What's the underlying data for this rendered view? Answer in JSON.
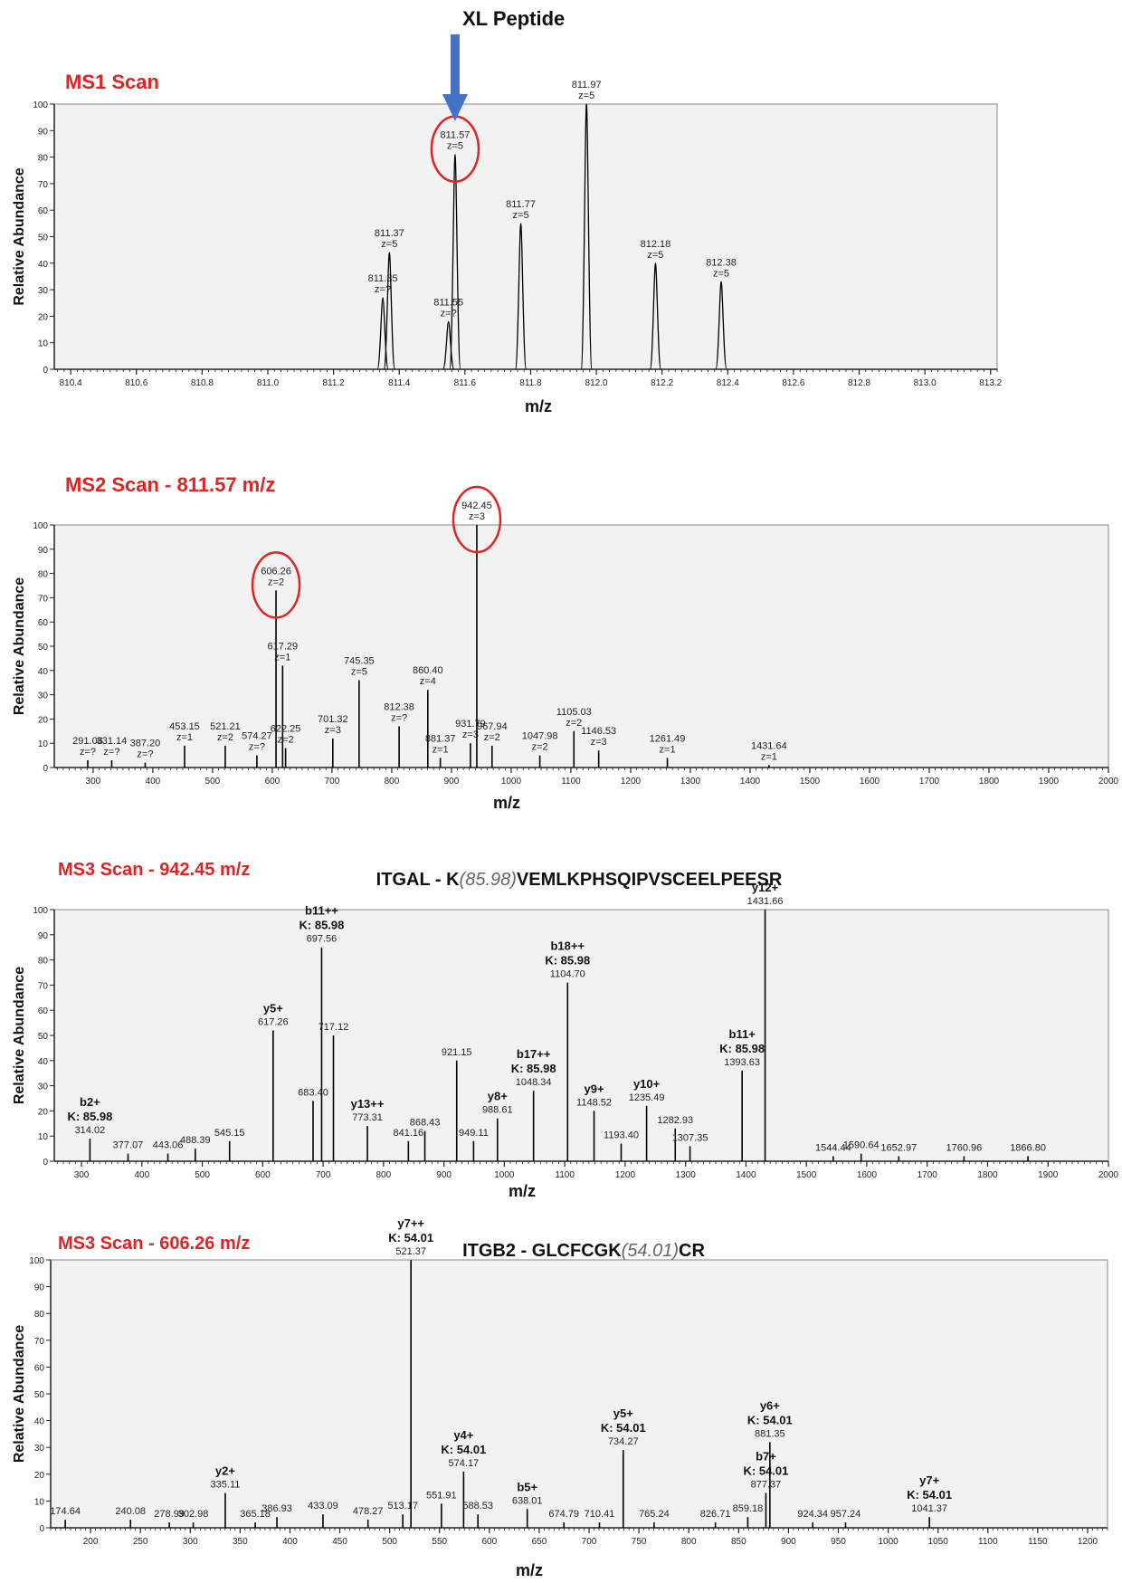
{
  "header": {
    "xl_label": "XL Peptide"
  },
  "colors": {
    "red": "#e02424",
    "arrow": "#4472c4",
    "panel_bg": "#f2f2f2",
    "axis": "#222222",
    "peak": "#000000",
    "callout": "#2ca02c"
  },
  "chart_data": [
    {
      "type": "line",
      "title": "MS1 Scan",
      "xlabel": "m/z",
      "ylabel": "Relative Abundance",
      "xlim": [
        810.35,
        813.22
      ],
      "ylim": [
        0,
        100
      ],
      "xticks": [
        810.4,
        810.6,
        810.8,
        811.0,
        811.2,
        811.4,
        811.6,
        811.8,
        812.0,
        812.2,
        812.4,
        812.6,
        812.8,
        813.0,
        813.2
      ],
      "xtick_labels": [
        "810.4",
        "810.6",
        "810.8",
        "811.0",
        "811.2",
        "811.4",
        "811.6",
        "811.8",
        "812.0",
        "812.2",
        "812.4",
        "812.6",
        "812.8",
        "813.0",
        "813.2"
      ],
      "yticks": [
        0,
        10,
        20,
        30,
        40,
        50,
        60,
        70,
        80,
        90,
        100
      ],
      "ytick_labels": [
        "0",
        "10",
        "20",
        "30",
        "40",
        "50",
        "60",
        "70",
        "80",
        "90",
        "100"
      ],
      "peaks": [
        {
          "x": 811.35,
          "y": 27,
          "labels": [
            "811.35",
            "z=?"
          ]
        },
        {
          "x": 811.37,
          "y": 44,
          "labels": [
            "811.37",
            "z=5"
          ]
        },
        {
          "x": 811.55,
          "y": 18,
          "labels": [
            "811.55",
            "z=?"
          ]
        },
        {
          "x": 811.57,
          "y": 81,
          "labels": [
            "811.57",
            "z=5"
          ],
          "circled": true
        },
        {
          "x": 811.77,
          "y": 55,
          "labels": [
            "811.77",
            "z=5"
          ]
        },
        {
          "x": 811.97,
          "y": 100,
          "labels": [
            "811.97",
            "z=5"
          ]
        },
        {
          "x": 812.18,
          "y": 40,
          "labels": [
            "812.18",
            "z=5"
          ]
        },
        {
          "x": 812.38,
          "y": 33,
          "labels": [
            "812.38",
            "z=5"
          ]
        }
      ]
    },
    {
      "type": "bar",
      "title": "MS2 Scan - 811.57 m/z",
      "xlabel": "m/z",
      "ylabel": "Relative Abundance",
      "xlim": [
        235,
        2000
      ],
      "ylim": [
        0,
        100
      ],
      "xticks": [
        300,
        400,
        500,
        600,
        700,
        800,
        900,
        1000,
        1100,
        1200,
        1300,
        1400,
        1500,
        1600,
        1700,
        1800,
        1900,
        2000
      ],
      "xtick_labels": [
        "300",
        "400",
        "500",
        "600",
        "700",
        "800",
        "900",
        "1000",
        "1100",
        "1200",
        "1300",
        "1400",
        "1500",
        "1600",
        "1700",
        "1800",
        "1900",
        "2000"
      ],
      "yticks": [
        0,
        10,
        20,
        30,
        40,
        50,
        60,
        70,
        80,
        90,
        100
      ],
      "ytick_labels": [
        "0",
        "10",
        "20",
        "30",
        "40",
        "50",
        "60",
        "70",
        "80",
        "90",
        "100"
      ],
      "peaks": [
        {
          "x": 291.06,
          "y": 3,
          "labels": [
            "291.06",
            "z=?"
          ]
        },
        {
          "x": 331.14,
          "y": 3,
          "labels": [
            "331.14",
            "z=?"
          ]
        },
        {
          "x": 387.2,
          "y": 2,
          "labels": [
            "387.20",
            "z=?"
          ]
        },
        {
          "x": 453.15,
          "y": 9,
          "labels": [
            "453.15",
            "z=1"
          ]
        },
        {
          "x": 521.21,
          "y": 9,
          "labels": [
            "521.21",
            "z=2"
          ]
        },
        {
          "x": 574.27,
          "y": 5,
          "labels": [
            "574.27",
            "z=?"
          ]
        },
        {
          "x": 606.26,
          "y": 73,
          "labels": [
            "606.26",
            "z=2"
          ],
          "circled": true
        },
        {
          "x": 617.29,
          "y": 42,
          "labels": [
            "617.29",
            "z=1"
          ]
        },
        {
          "x": 622.25,
          "y": 8,
          "labels": [
            "622.25",
            "z=2"
          ]
        },
        {
          "x": 701.32,
          "y": 12,
          "labels": [
            "701.32",
            "z=3"
          ]
        },
        {
          "x": 745.35,
          "y": 36,
          "labels": [
            "745.35",
            "z=5"
          ]
        },
        {
          "x": 812.38,
          "y": 17,
          "labels": [
            "812.38",
            "z=?"
          ]
        },
        {
          "x": 860.4,
          "y": 32,
          "labels": [
            "860.40",
            "z=4"
          ]
        },
        {
          "x": 881.37,
          "y": 4,
          "labels": [
            "881.37",
            "z=1"
          ]
        },
        {
          "x": 931.79,
          "y": 10,
          "labels": [
            "931.79",
            "z=3"
          ]
        },
        {
          "x": 942.45,
          "y": 100,
          "labels": [
            "942.45",
            "z=3"
          ],
          "circled": true
        },
        {
          "x": 967.94,
          "y": 9,
          "labels": [
            "967.94",
            "z=2"
          ]
        },
        {
          "x": 1047.98,
          "y": 5,
          "labels": [
            "1047.98",
            "z=2"
          ]
        },
        {
          "x": 1105.03,
          "y": 15,
          "labels": [
            "1105.03",
            "z=2"
          ]
        },
        {
          "x": 1146.53,
          "y": 7,
          "labels": [
            "1146.53",
            "z=3"
          ]
        },
        {
          "x": 1261.49,
          "y": 4,
          "labels": [
            "1261.49",
            "z=1"
          ]
        },
        {
          "x": 1431.64,
          "y": 1,
          "labels": [
            "1431.64",
            "z=1"
          ]
        }
      ]
    },
    {
      "type": "bar",
      "title": "MS3 Scan - 942.45 m/z",
      "peptide": {
        "pre": "ITGAL - K",
        "mod": "(85.98)",
        "post": "VEMLKPHSQIPVSCEELPEESR"
      },
      "xlabel": "m/z",
      "ylabel": "Relative Abundance",
      "xlim": [
        255,
        2000
      ],
      "ylim": [
        0,
        100
      ],
      "xticks": [
        300,
        400,
        500,
        600,
        700,
        800,
        900,
        1000,
        1100,
        1200,
        1300,
        1400,
        1500,
        1600,
        1700,
        1800,
        1900,
        2000
      ],
      "xtick_labels": [
        "300",
        "400",
        "500",
        "600",
        "700",
        "800",
        "900",
        "1000",
        "1100",
        "1200",
        "1300",
        "1400",
        "1500",
        "1600",
        "1700",
        "1800",
        "1900",
        "2000"
      ],
      "yticks": [
        0,
        10,
        20,
        30,
        40,
        50,
        60,
        70,
        80,
        90,
        100
      ],
      "ytick_labels": [
        "0",
        "10",
        "20",
        "30",
        "40",
        "50",
        "60",
        "70",
        "80",
        "90",
        "100"
      ],
      "peaks": [
        {
          "x": 314.02,
          "y": 9,
          "labels": [
            "314.02"
          ],
          "ion": [
            "b2+",
            "K: 85.98"
          ]
        },
        {
          "x": 377.07,
          "y": 3,
          "labels": [
            "377.07"
          ]
        },
        {
          "x": 443.06,
          "y": 3,
          "labels": [
            "443.06"
          ]
        },
        {
          "x": 488.39,
          "y": 5,
          "labels": [
            "488.39"
          ]
        },
        {
          "x": 545.15,
          "y": 8,
          "labels": [
            "545.15"
          ]
        },
        {
          "x": 617.26,
          "y": 52,
          "labels": [
            "617.26"
          ],
          "ion": [
            "y5+"
          ]
        },
        {
          "x": 683.4,
          "y": 24,
          "labels": [
            "683.40"
          ]
        },
        {
          "x": 697.56,
          "y": 85,
          "labels": [
            "697.56"
          ],
          "ion": [
            "b11++",
            "K: 85.98"
          ]
        },
        {
          "x": 717.12,
          "y": 50,
          "labels": [
            "717.12"
          ]
        },
        {
          "x": 773.31,
          "y": 14,
          "labels": [
            "773.31"
          ],
          "ion": [
            "y13++"
          ]
        },
        {
          "x": 841.16,
          "y": 8,
          "labels": [
            "841.16"
          ]
        },
        {
          "x": 868.43,
          "y": 12,
          "labels": [
            "868.43"
          ]
        },
        {
          "x": 921.15,
          "y": 40,
          "labels": [
            "921.15"
          ]
        },
        {
          "x": 949.11,
          "y": 8,
          "labels": [
            "949.11"
          ]
        },
        {
          "x": 988.61,
          "y": 17,
          "labels": [
            "988.61"
          ],
          "ion": [
            "y8+"
          ]
        },
        {
          "x": 1048.34,
          "y": 28,
          "labels": [
            "1048.34"
          ],
          "ion": [
            "b17++",
            "K: 85.98"
          ]
        },
        {
          "x": 1104.7,
          "y": 71,
          "labels": [
            "1104.70"
          ],
          "ion": [
            "b18++",
            "K: 85.98"
          ]
        },
        {
          "x": 1148.52,
          "y": 20,
          "labels": [
            "1148.52"
          ],
          "ion": [
            "y9+"
          ]
        },
        {
          "x": 1193.4,
          "y": 7,
          "labels": [
            "1193.40"
          ]
        },
        {
          "x": 1235.49,
          "y": 22,
          "labels": [
            "1235.49"
          ],
          "ion": [
            "y10+"
          ]
        },
        {
          "x": 1282.93,
          "y": 13,
          "labels": [
            "1282.93"
          ]
        },
        {
          "x": 1307.35,
          "y": 6,
          "labels": [
            "1307.35"
          ]
        },
        {
          "x": 1393.63,
          "y": 36,
          "labels": [
            "1393.63"
          ],
          "ion": [
            "b11+",
            "K: 85.98"
          ]
        },
        {
          "x": 1431.66,
          "y": 100,
          "labels": [
            "1431.66"
          ],
          "ion": [
            "y12+"
          ]
        },
        {
          "x": 1544.44,
          "y": 2,
          "labels": [
            "1544.44"
          ]
        },
        {
          "x": 1590.64,
          "y": 3,
          "labels": [
            "1590.64"
          ]
        },
        {
          "x": 1652.97,
          "y": 2,
          "labels": [
            "1652.97"
          ]
        },
        {
          "x": 1760.96,
          "y": 2,
          "labels": [
            "1760.96"
          ]
        },
        {
          "x": 1866.8,
          "y": 2,
          "labels": [
            "1866.80"
          ]
        }
      ]
    },
    {
      "type": "bar",
      "title": "MS3 Scan - 606.26 m/z",
      "peptide": {
        "pre": "ITGB2 - GLCFCGK",
        "mod": "(54.01)",
        "post": "CR"
      },
      "xlabel": "m/z",
      "ylabel": "Relative Abundance",
      "xlim": [
        160,
        1220
      ],
      "ylim": [
        0,
        100
      ],
      "xticks": [
        200,
        250,
        300,
        350,
        400,
        450,
        500,
        550,
        600,
        650,
        700,
        750,
        800,
        850,
        900,
        950,
        1000,
        1050,
        1100,
        1150,
        1200
      ],
      "xtick_labels": [
        "200",
        "250",
        "300",
        "350",
        "400",
        "450",
        "500",
        "550",
        "600",
        "650",
        "700",
        "750",
        "800",
        "850",
        "900",
        "950",
        "1000",
        "1050",
        "1100",
        "1150",
        "1200"
      ],
      "yticks": [
        0,
        10,
        20,
        30,
        40,
        50,
        60,
        70,
        80,
        90,
        100
      ],
      "ytick_labels": [
        "0",
        "10",
        "20",
        "30",
        "40",
        "50",
        "60",
        "70",
        "80",
        "90",
        "100"
      ],
      "peaks": [
        {
          "x": 174.64,
          "y": 3,
          "labels": [
            "174.64"
          ]
        },
        {
          "x": 240.08,
          "y": 3,
          "labels": [
            "240.08"
          ]
        },
        {
          "x": 278.99,
          "y": 2,
          "labels": [
            "278.99"
          ]
        },
        {
          "x": 302.98,
          "y": 2,
          "labels": [
            "302.98"
          ]
        },
        {
          "x": 335.11,
          "y": 13,
          "labels": [
            "335.11"
          ],
          "ion": [
            "y2+"
          ]
        },
        {
          "x": 365.18,
          "y": 2,
          "labels": [
            "365.18"
          ]
        },
        {
          "x": 386.93,
          "y": 4,
          "labels": [
            "386.93"
          ]
        },
        {
          "x": 433.09,
          "y": 5,
          "labels": [
            "433.09"
          ]
        },
        {
          "x": 478.27,
          "y": 3,
          "labels": [
            "478.27"
          ]
        },
        {
          "x": 513.17,
          "y": 5,
          "labels": [
            "513.17"
          ]
        },
        {
          "x": 521.37,
          "y": 100,
          "labels": [
            "521.37"
          ],
          "ion": [
            "y7++",
            "K: 54.01"
          ]
        },
        {
          "x": 551.91,
          "y": 9,
          "labels": [
            "551.91"
          ]
        },
        {
          "x": 574.17,
          "y": 21,
          "labels": [
            "574.17"
          ],
          "ion": [
            "y4+",
            "K: 54.01"
          ]
        },
        {
          "x": 588.53,
          "y": 5,
          "labels": [
            "588.53"
          ]
        },
        {
          "x": 638.01,
          "y": 7,
          "labels": [
            "638.01"
          ],
          "ion": [
            "b5+"
          ]
        },
        {
          "x": 674.79,
          "y": 2,
          "labels": [
            "674.79"
          ]
        },
        {
          "x": 710.41,
          "y": 2,
          "labels": [
            "710.41"
          ]
        },
        {
          "x": 734.27,
          "y": 29,
          "labels": [
            "734.27"
          ],
          "ion": [
            "y5+",
            "K: 54.01"
          ]
        },
        {
          "x": 765.24,
          "y": 2,
          "labels": [
            "765.24"
          ]
        },
        {
          "x": 826.71,
          "y": 2,
          "labels": [
            "826.71"
          ]
        },
        {
          "x": 859.18,
          "y": 4,
          "labels": [
            "859.18"
          ]
        },
        {
          "x": 877.37,
          "y": 13,
          "labels": [
            "877.37"
          ],
          "ion": [
            "b7+",
            "K: 54.01"
          ]
        },
        {
          "x": 881.35,
          "y": 32,
          "labels": [
            "881.35"
          ],
          "ion": [
            "y6+",
            "K: 54.01"
          ]
        },
        {
          "x": 924.34,
          "y": 2,
          "labels": [
            "924.34"
          ]
        },
        {
          "x": 957.24,
          "y": 2,
          "labels": [
            "957.24"
          ]
        },
        {
          "x": 1041.37,
          "y": 4,
          "labels": [
            "1041.37"
          ],
          "ion": [
            "y7+",
            "K: 54.01"
          ]
        }
      ]
    }
  ]
}
